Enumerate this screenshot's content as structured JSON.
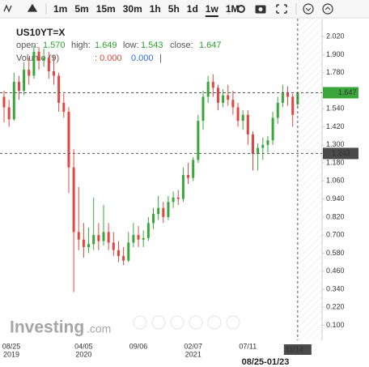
{
  "toolbar": {
    "intervals": [
      "1m",
      "5m",
      "15m",
      "30m",
      "1h",
      "5h",
      "1d",
      "1w",
      "1M"
    ],
    "selected": 7
  },
  "legend": {
    "symbol": "US10YT=X",
    "open_label": "open:",
    "open": "1.570",
    "high_label": "high:",
    "high": "1.649",
    "low_label": "low:",
    "low": "1.543",
    "close_label": "close:",
    "close": "1.647",
    "volume": "Volume (9)",
    "volume_values": ": 0.000",
    "volume_value2": "0.000",
    "volume_sep": "|"
  },
  "watermark": {
    "brand": "Investing",
    "suffix": ".com"
  },
  "range_label": "08/25-01/23",
  "chart_data": {
    "type": "candlestick",
    "categories": [
      "08/25",
      null,
      null,
      null,
      null,
      null,
      null,
      null,
      null,
      null,
      null,
      null,
      null,
      null,
      null,
      null,
      "04/05",
      null,
      null,
      null,
      null,
      null,
      null,
      null,
      null,
      null,
      null,
      "09/06",
      null,
      null,
      null,
      null,
      null,
      null,
      null,
      null,
      null,
      null,
      "02/07",
      null,
      null,
      null,
      null,
      null,
      null,
      null,
      null,
      null,
      null,
      "07/11",
      null,
      null,
      null,
      null,
      null,
      null,
      null,
      null,
      null,
      null
    ],
    "years": [
      "2019",
      null,
      null,
      null,
      null,
      null,
      null,
      null,
      null,
      null,
      null,
      null,
      null,
      null,
      null,
      null,
      "2020",
      null,
      null,
      null,
      null,
      null,
      null,
      null,
      null,
      null,
      null,
      null,
      null,
      null,
      null,
      null,
      null,
      null,
      null,
      null,
      null,
      null,
      "2021",
      null,
      null,
      null,
      null,
      null,
      null,
      null,
      null,
      null,
      null,
      null,
      null,
      null,
      null,
      null,
      null,
      null,
      null,
      null,
      null,
      null
    ],
    "open": [
      1.62,
      1.55,
      1.47,
      1.72,
      1.66,
      1.8,
      1.76,
      1.92,
      1.86,
      1.88,
      1.79,
      1.76,
      1.58,
      1.52,
      1.15,
      0.72,
      0.67,
      0.62,
      0.64,
      0.7,
      0.66,
      0.72,
      0.65,
      0.6,
      0.56,
      0.53,
      0.65,
      0.7,
      0.67,
      0.68,
      0.78,
      0.84,
      0.88,
      0.82,
      0.92,
      0.95,
      0.94,
      1.1,
      1.08,
      1.2,
      1.46,
      1.62,
      1.72,
      1.68,
      1.58,
      1.63,
      1.6,
      1.55,
      1.46,
      1.5,
      1.37,
      1.24,
      1.28,
      1.3,
      1.33,
      1.48,
      1.58,
      1.65,
      1.62,
      1.57
    ],
    "high": [
      1.66,
      1.6,
      1.78,
      1.76,
      1.85,
      1.88,
      1.96,
      1.95,
      1.94,
      1.92,
      1.9,
      1.78,
      1.64,
      1.55,
      1.27,
      1.02,
      0.78,
      0.75,
      0.95,
      0.78,
      0.9,
      0.78,
      0.72,
      0.66,
      0.62,
      0.72,
      0.78,
      0.76,
      0.73,
      0.82,
      0.88,
      0.96,
      0.92,
      0.96,
      0.99,
      1.0,
      1.15,
      1.18,
      1.22,
      1.5,
      1.66,
      1.76,
      1.77,
      1.7,
      1.67,
      1.7,
      1.66,
      1.58,
      1.53,
      1.53,
      1.39,
      1.31,
      1.35,
      1.36,
      1.52,
      1.62,
      1.7,
      1.69,
      1.64,
      1.649
    ],
    "low": [
      1.45,
      1.42,
      1.46,
      1.6,
      1.63,
      1.7,
      1.74,
      1.8,
      1.82,
      1.74,
      1.7,
      1.52,
      1.48,
      0.98,
      0.32,
      0.6,
      0.55,
      0.58,
      0.6,
      0.6,
      0.63,
      0.6,
      0.56,
      0.52,
      0.5,
      0.52,
      0.62,
      0.62,
      0.62,
      0.66,
      0.74,
      0.8,
      0.78,
      0.8,
      0.88,
      0.9,
      0.92,
      1.04,
      1.06,
      1.18,
      1.4,
      1.58,
      1.62,
      1.53,
      1.55,
      1.56,
      1.5,
      1.42,
      1.4,
      1.3,
      1.13,
      1.13,
      1.2,
      1.25,
      1.3,
      1.44,
      1.55,
      1.56,
      1.42,
      1.543
    ],
    "close": [
      1.55,
      1.47,
      1.72,
      1.66,
      1.8,
      1.76,
      1.92,
      1.86,
      1.88,
      1.79,
      1.76,
      1.58,
      1.52,
      1.15,
      0.72,
      0.67,
      0.62,
      0.64,
      0.7,
      0.66,
      0.72,
      0.65,
      0.6,
      0.56,
      0.53,
      0.65,
      0.7,
      0.67,
      0.68,
      0.78,
      0.84,
      0.88,
      0.82,
      0.92,
      0.95,
      0.94,
      1.1,
      1.08,
      1.2,
      1.46,
      1.62,
      1.72,
      1.68,
      1.58,
      1.63,
      1.6,
      1.55,
      1.46,
      1.5,
      1.37,
      1.24,
      1.28,
      1.3,
      1.33,
      1.48,
      1.58,
      1.65,
      1.62,
      1.5,
      1.647
    ],
    "up_color": "#3aa63a",
    "down_color": "#e2463f",
    "ylim": [
      0,
      2.14
    ],
    "yticks": [
      {
        "value": 2.02,
        "label": "2.020"
      },
      {
        "value": 1.9,
        "label": "1.900"
      },
      {
        "value": 1.78,
        "label": "1.780"
      },
      {
        "value": 1.54,
        "label": "1.540"
      },
      {
        "value": 1.42,
        "label": "1.420"
      },
      {
        "value": 1.3,
        "label": "1.300"
      },
      {
        "value": 1.18,
        "label": "1.180"
      },
      {
        "value": 1.06,
        "label": "1.060"
      },
      {
        "value": 0.94,
        "label": "0.940"
      },
      {
        "value": 0.82,
        "label": "0.820"
      },
      {
        "value": 0.7,
        "label": "0.700"
      },
      {
        "value": 0.58,
        "label": "0.580"
      },
      {
        "value": 0.46,
        "label": "0.460"
      },
      {
        "value": 0.34,
        "label": "0.340"
      },
      {
        "value": 0.22,
        "label": "0.220"
      },
      {
        "value": 0.1,
        "label": "0.100"
      }
    ],
    "last_price": {
      "value": 1.647,
      "label": "1.647"
    },
    "crosshair": {
      "value": 1.243,
      "label": "1.243",
      "date": "11/14",
      "index": 59
    }
  }
}
